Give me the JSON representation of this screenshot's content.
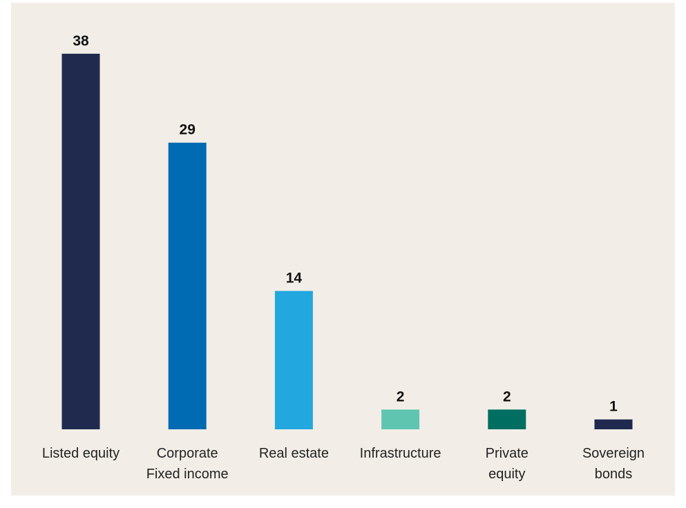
{
  "chart_data": {
    "type": "bar",
    "categories": [
      "Listed equity",
      "Corporate\nFixed income",
      "Real estate",
      "Infrastructure",
      "Private\nequity",
      "Sovereign\nbonds"
    ],
    "values": [
      38,
      29,
      14,
      2,
      2,
      1
    ],
    "colors": [
      "#1f2a4e",
      "#006ab3",
      "#22a7df",
      "#5fc5b1",
      "#006e61",
      "#1f2a4e"
    ]
  }
}
